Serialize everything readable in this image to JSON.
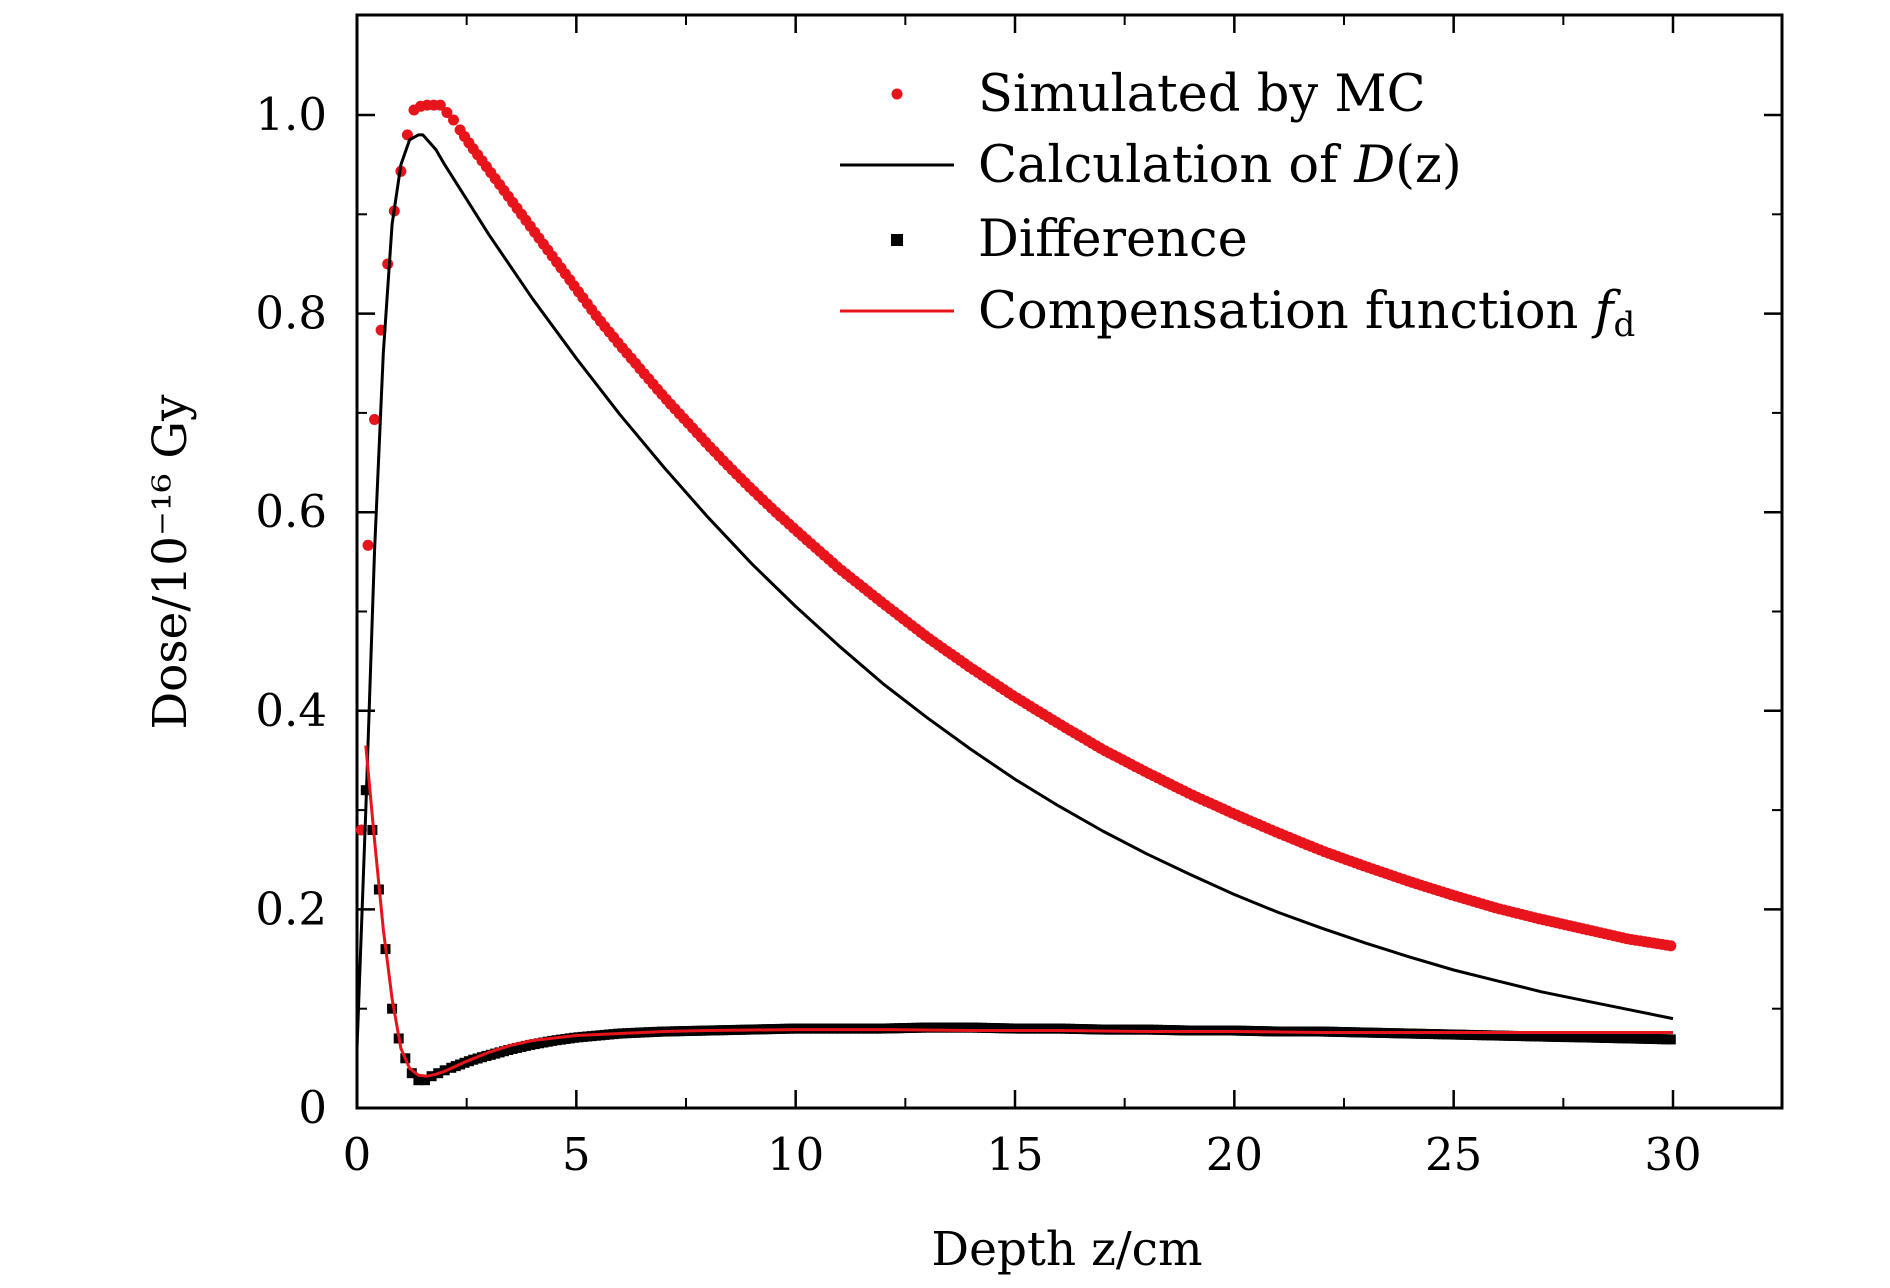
{
  "chart_data": {
    "type": "line",
    "title": "",
    "xlabel": "Depth z/cm",
    "ylabel": "Dose/10⁻¹⁶ Gy",
    "xlim": [
      0,
      32.4
    ],
    "ylim": [
      0,
      1.1
    ],
    "xticks": [
      0,
      5,
      10,
      15,
      20,
      25,
      30
    ],
    "xtick_labels": [
      "0",
      "5",
      "10",
      "15",
      "20",
      "25",
      "30"
    ],
    "yticks": [
      0,
      0.2,
      0.4,
      0.6,
      0.8,
      1.0
    ],
    "ytick_labels": [
      "0",
      "0.2",
      "0.4",
      "0.6",
      "0.8",
      "1.0"
    ],
    "grid": false,
    "legend_position": "top-right",
    "series": [
      {
        "name": "Simulated by MC",
        "style": "scatter-circle",
        "color": "#e8141c",
        "x": [
          0.1,
          0.2,
          0.35,
          0.5,
          0.65,
          0.8,
          0.95,
          1.1,
          1.2,
          1.3,
          1.5,
          1.7,
          1.9,
          2.2,
          2.5,
          3,
          3.5,
          4,
          4.5,
          5,
          5.5,
          6,
          6.5,
          7,
          7.5,
          8,
          8.5,
          9,
          9.5,
          10,
          11,
          12,
          13,
          14,
          15,
          16,
          17,
          18,
          19,
          20,
          21,
          22,
          23,
          24,
          25,
          26,
          27,
          28,
          29,
          30
        ],
        "y": [
          0.28,
          0.52,
          0.66,
          0.76,
          0.83,
          0.89,
          0.93,
          0.97,
          0.99,
          1.005,
          1.01,
          1.01,
          1.01,
          0.995,
          0.975,
          0.945,
          0.915,
          0.885,
          0.855,
          0.825,
          0.795,
          0.768,
          0.742,
          0.716,
          0.692,
          0.668,
          0.645,
          0.623,
          0.602,
          0.582,
          0.543,
          0.508,
          0.474,
          0.443,
          0.414,
          0.387,
          0.361,
          0.338,
          0.316,
          0.296,
          0.277,
          0.259,
          0.243,
          0.228,
          0.214,
          0.201,
          0.19,
          0.18,
          0.17,
          0.163
        ]
      },
      {
        "name": "Calculation of D(z)",
        "style": "line",
        "color": "#000000",
        "x": [
          0,
          0.2,
          0.4,
          0.6,
          0.8,
          1.0,
          1.2,
          1.4,
          1.5,
          1.6,
          1.8,
          2,
          2.5,
          3,
          4,
          5,
          6,
          7,
          8,
          9,
          10,
          11,
          12,
          13,
          14,
          15,
          16,
          17,
          18,
          19,
          20,
          21,
          22,
          23,
          24,
          25,
          26,
          27,
          28,
          29,
          30
        ],
        "y": [
          0.06,
          0.3,
          0.56,
          0.76,
          0.89,
          0.95,
          0.975,
          0.98,
          0.98,
          0.975,
          0.965,
          0.95,
          0.915,
          0.88,
          0.815,
          0.755,
          0.698,
          0.645,
          0.595,
          0.548,
          0.505,
          0.465,
          0.427,
          0.393,
          0.361,
          0.331,
          0.304,
          0.279,
          0.256,
          0.235,
          0.215,
          0.197,
          0.181,
          0.166,
          0.152,
          0.139,
          0.128,
          0.117,
          0.108,
          0.099,
          0.09
        ]
      },
      {
        "name": "Difference",
        "style": "scatter-square",
        "color": "#000000",
        "x": [
          0.2,
          0.35,
          0.5,
          0.65,
          0.8,
          0.95,
          1.1,
          1.25,
          1.4,
          1.55,
          1.7,
          2,
          2.3,
          2.6,
          3,
          3.5,
          4,
          4.5,
          5,
          6,
          7,
          8,
          9,
          10,
          11,
          12,
          13,
          14,
          15,
          16,
          17,
          18,
          19,
          20,
          21,
          22,
          23,
          24,
          25,
          26,
          27,
          28,
          29,
          30
        ],
        "y": [
          0.32,
          0.28,
          0.22,
          0.16,
          0.1,
          0.07,
          0.05,
          0.035,
          0.028,
          0.028,
          0.032,
          0.038,
          0.043,
          0.048,
          0.053,
          0.059,
          0.064,
          0.068,
          0.071,
          0.075,
          0.077,
          0.078,
          0.079,
          0.08,
          0.08,
          0.08,
          0.081,
          0.081,
          0.08,
          0.08,
          0.079,
          0.079,
          0.078,
          0.078,
          0.077,
          0.077,
          0.076,
          0.075,
          0.074,
          0.073,
          0.072,
          0.071,
          0.07,
          0.069
        ]
      },
      {
        "name": "Compensation function f_d",
        "style": "line",
        "color": "#e8141c",
        "x": [
          0.2,
          0.4,
          0.6,
          0.8,
          1.0,
          1.2,
          1.4,
          1.6,
          1.8,
          2,
          2.5,
          3,
          3.5,
          4,
          5,
          6,
          7,
          8,
          10,
          12,
          14,
          16,
          18,
          20,
          22,
          24,
          26,
          28,
          30
        ],
        "y": [
          0.365,
          0.27,
          0.18,
          0.11,
          0.06,
          0.04,
          0.033,
          0.032,
          0.034,
          0.037,
          0.047,
          0.056,
          0.063,
          0.068,
          0.073,
          0.075,
          0.077,
          0.078,
          0.079,
          0.079,
          0.078,
          0.078,
          0.077,
          0.077,
          0.076,
          0.076,
          0.076,
          0.076,
          0.076
        ]
      }
    ],
    "legend": [
      {
        "label": "Simulated by MC"
      },
      {
        "label": "Calculation of ",
        "math": "D",
        "math_suffix": "(z)"
      },
      {
        "label": "Difference"
      },
      {
        "label": "Compensation function ",
        "math": "f",
        "subscript": "d"
      }
    ]
  }
}
